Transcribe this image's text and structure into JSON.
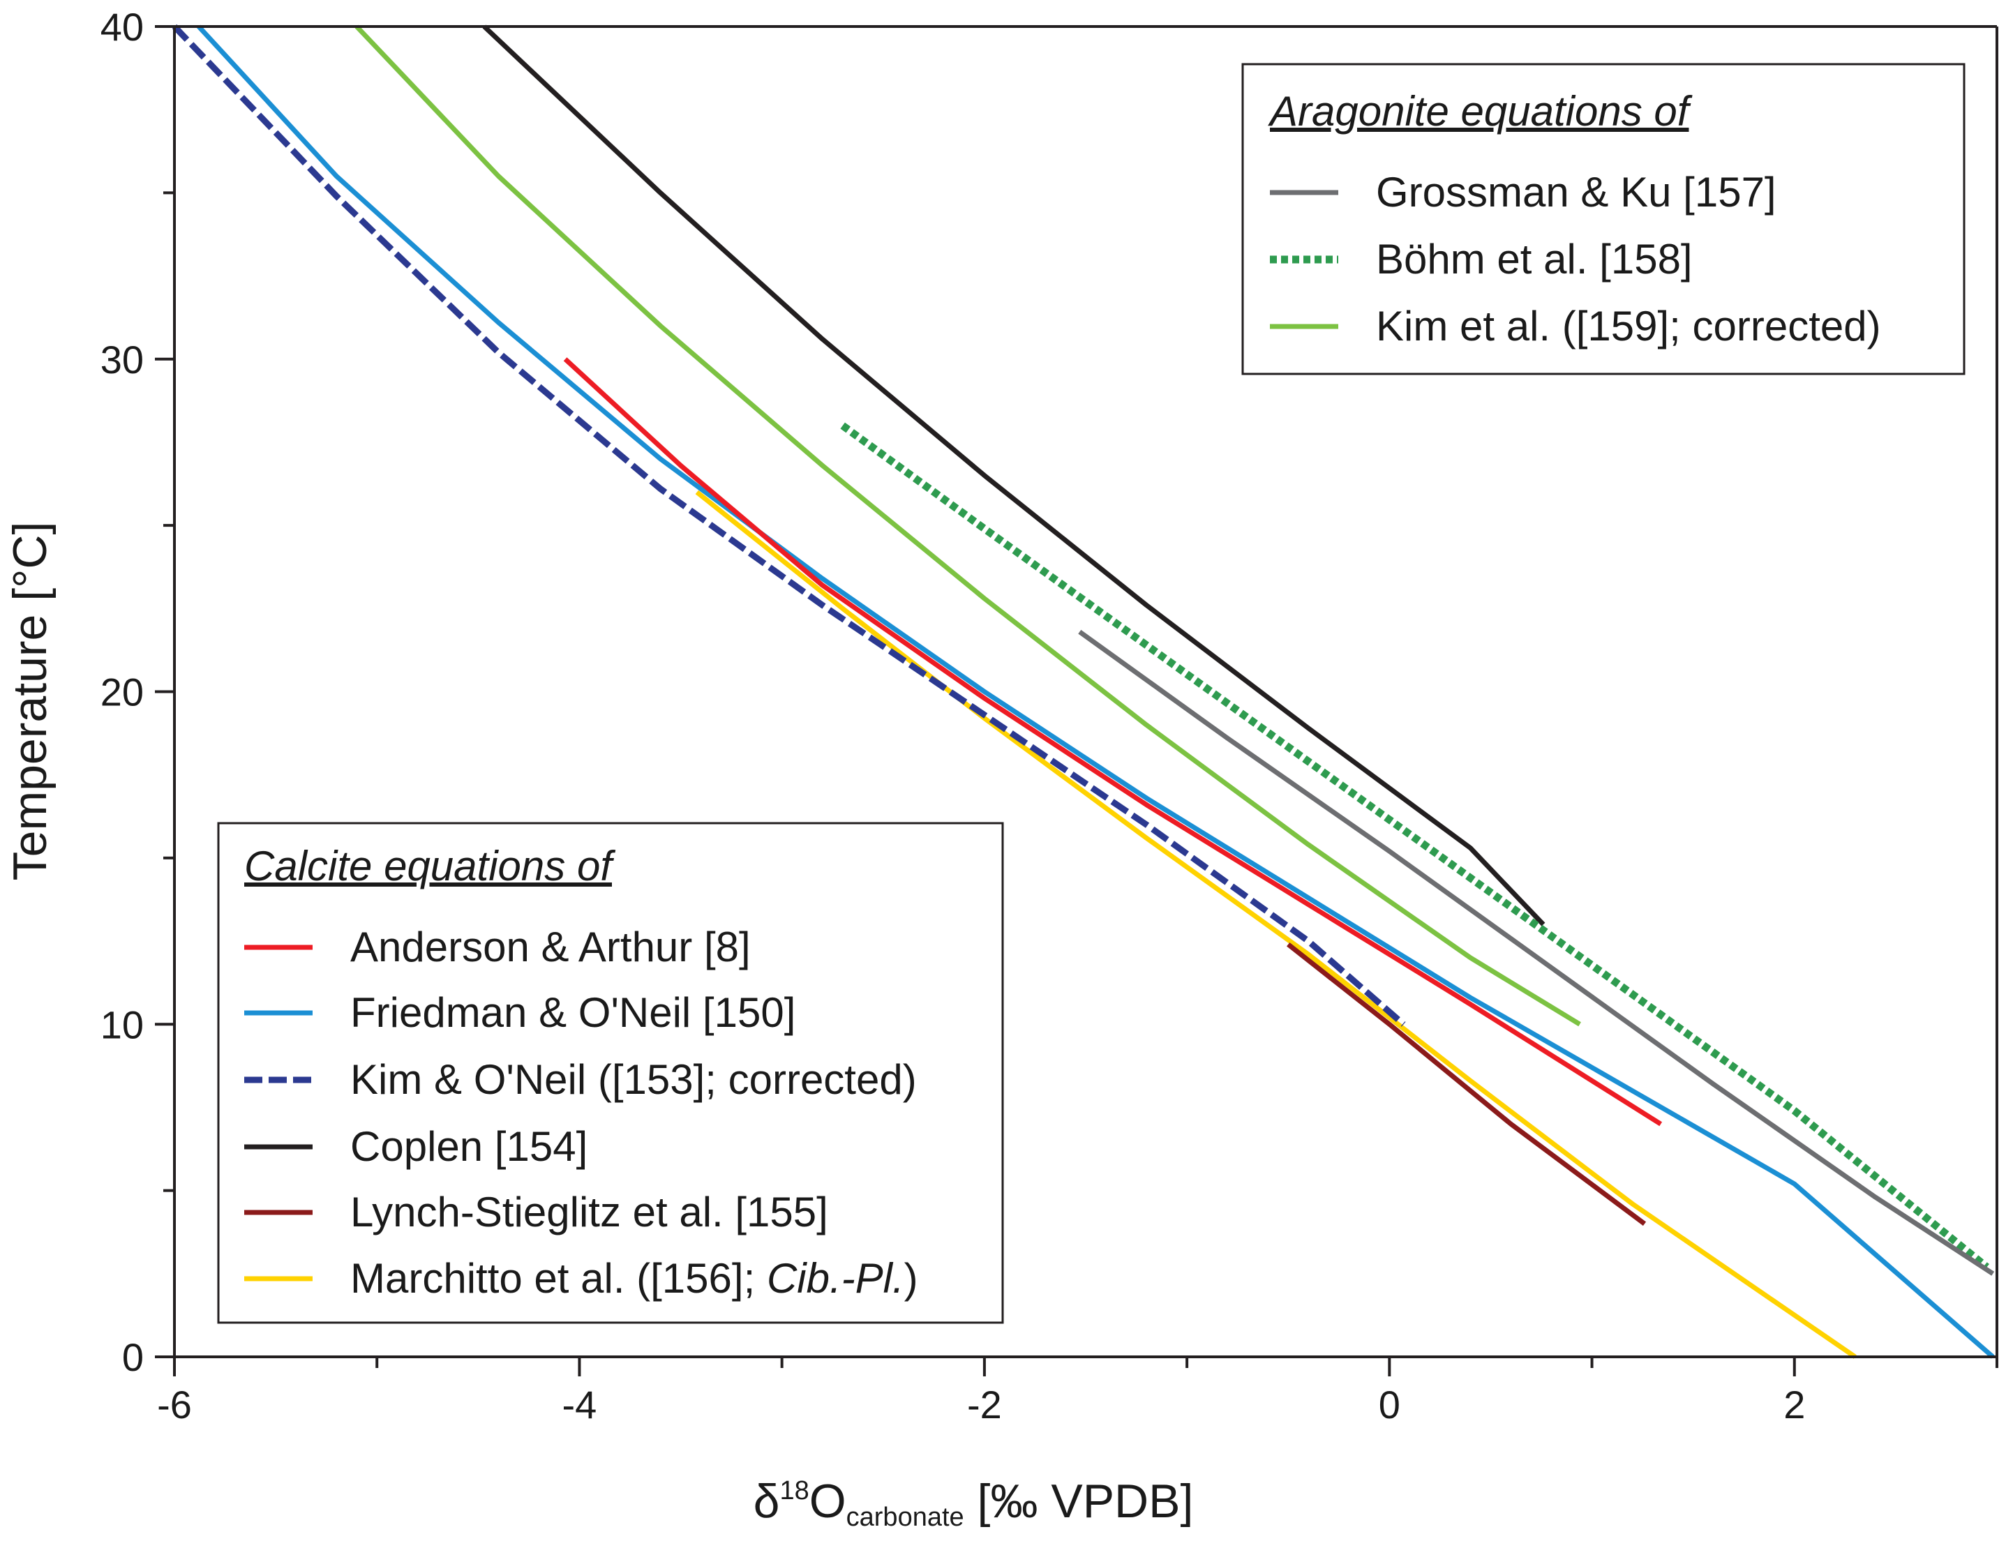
{
  "chart_data": {
    "type": "line",
    "xlabel": {
      "prefix": "δ",
      "sup": "18",
      "main": "O",
      "sub": "carbonate",
      "suffix": " [‰ VPDB]"
    },
    "ylabel": "Temperature [°C]",
    "xlim": [
      -6,
      3
    ],
    "ylim": [
      0,
      40
    ],
    "xticks": [
      -6,
      -4,
      -2,
      0,
      2
    ],
    "xtick_labels": [
      "-6",
      "-4",
      "-2",
      "0",
      "2"
    ],
    "xminor": [
      -5,
      -3,
      -1,
      1,
      3
    ],
    "yticks": [
      0,
      10,
      20,
      30,
      40
    ],
    "ytick_labels": [
      "0",
      "10",
      "20",
      "30",
      "40"
    ],
    "yminor": [
      5,
      15,
      25,
      35
    ],
    "legends": [
      {
        "id": "aragonite",
        "title": "Aragonite equations of",
        "position": "top-right",
        "entries": [
          {
            "series": "grossman",
            "label": "Grossman & Ku [157]"
          },
          {
            "series": "bohm",
            "label": "Böhm et al. [158]"
          },
          {
            "series": "kim-arag",
            "label": "Kim et al. ([159]; corrected)"
          }
        ]
      },
      {
        "id": "calcite",
        "title": "Calcite equations of",
        "position": "bottom-left",
        "entries": [
          {
            "series": "anderson",
            "label": "Anderson & Arthur [8]"
          },
          {
            "series": "friedman",
            "label": "Friedman & O'Neil [150]"
          },
          {
            "series": "kim-oneil",
            "label": "Kim & O'Neil ([153]; corrected)"
          },
          {
            "series": "coplen",
            "label": "Coplen [154]"
          },
          {
            "series": "lynch",
            "label": "Lynch-Stieglitz et al. [155]"
          },
          {
            "series": "marchitto",
            "label_prefix": "Marchitto et al. ([156]; ",
            "label_italic": "Cib.-Pl.",
            "label_suffix": ")"
          }
        ]
      }
    ],
    "series": [
      {
        "id": "coplen",
        "name": "Coplen [154]",
        "color": "#231f20",
        "dash": "solid",
        "x": [
          -4.47,
          -3.6,
          -2.8,
          -2.0,
          -1.2,
          -0.4,
          0.4,
          0.76
        ],
        "y": [
          40.0,
          35.0,
          30.6,
          26.5,
          22.6,
          18.9,
          15.3,
          13.0
        ]
      },
      {
        "id": "kim-arag",
        "name": "Kim et al. ([159]; corrected)",
        "color": "#7cc242",
        "dash": "solid",
        "x": [
          -5.1,
          -4.4,
          -3.6,
          -2.8,
          -2.0,
          -1.2,
          -0.4,
          0.4,
          0.94
        ],
        "y": [
          40.0,
          35.5,
          31.0,
          26.8,
          22.8,
          19.0,
          15.4,
          12.0,
          10.0
        ]
      },
      {
        "id": "bohm",
        "name": "Böhm et al. [158]",
        "color": "#2e9b4f",
        "dash": "dotted",
        "x": [
          -2.7,
          -2.0,
          -1.2,
          -0.4,
          0.4,
          1.2,
          2.0,
          2.95
        ],
        "y": [
          28.0,
          24.9,
          21.4,
          17.9,
          14.4,
          10.9,
          7.4,
          2.7
        ]
      },
      {
        "id": "grossman",
        "name": "Grossman & Ku [157]",
        "color": "#6d6e71",
        "dash": "solid",
        "x": [
          -1.53,
          -0.8,
          0.0,
          0.8,
          1.6,
          2.4,
          2.98
        ],
        "y": [
          21.8,
          18.6,
          15.2,
          11.7,
          8.2,
          4.8,
          2.5
        ]
      },
      {
        "id": "friedman",
        "name": "Friedman & O'Neil [150]",
        "color": "#1b8fd4",
        "dash": "solid",
        "x": [
          -5.88,
          -5.2,
          -4.4,
          -3.6,
          -2.8,
          -2.0,
          -1.2,
          -0.4,
          0.4,
          1.2,
          2.0,
          2.98
        ],
        "y": [
          40.0,
          35.5,
          31.1,
          27.0,
          23.4,
          20.0,
          16.8,
          13.8,
          10.8,
          8.0,
          5.2,
          0.0
        ]
      },
      {
        "id": "anderson",
        "name": "Anderson & Arthur [8]",
        "color": "#ed1c24",
        "dash": "solid",
        "x": [
          -4.07,
          -3.5,
          -2.8,
          -2.0,
          -1.2,
          -0.4,
          0.4,
          1.34
        ],
        "y": [
          30.0,
          26.8,
          23.2,
          19.8,
          16.6,
          13.6,
          10.6,
          7.0
        ]
      },
      {
        "id": "marchitto",
        "name": "Marchitto et al. ([156]; Cib.-Pl.)",
        "color": "#ffd200",
        "dash": "solid",
        "x": [
          -3.42,
          -2.7,
          -2.0,
          -1.2,
          -0.4,
          0.4,
          1.2,
          2.3
        ],
        "y": [
          26.0,
          22.5,
          19.2,
          15.6,
          12.1,
          8.3,
          4.6,
          0.0
        ]
      },
      {
        "id": "lynch",
        "name": "Lynch-Stieglitz et al. [155]",
        "color": "#8b1a1a",
        "dash": "solid",
        "x": [
          -0.5,
          0.0,
          0.6,
          1.26
        ],
        "y": [
          12.4,
          10.0,
          7.0,
          4.0
        ]
      },
      {
        "id": "kim-oneil",
        "name": "Kim & O'Neil ([153]; corrected)",
        "color": "#2b3990",
        "dash": "dashed",
        "x": [
          -6.0,
          -5.2,
          -4.4,
          -3.6,
          -2.8,
          -2.0,
          -1.2,
          -0.4,
          0.07
        ],
        "y": [
          40.0,
          34.9,
          30.2,
          26.1,
          22.6,
          19.3,
          16.0,
          12.5,
          10.0
        ]
      }
    ]
  }
}
